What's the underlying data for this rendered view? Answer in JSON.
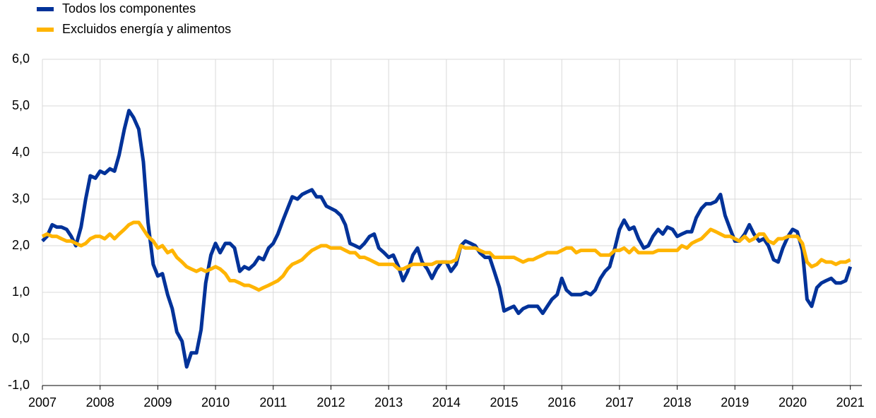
{
  "chart_data": {
    "type": "line",
    "x": [
      2007,
      2007.08,
      2007.17,
      2007.25,
      2007.33,
      2007.42,
      2007.5,
      2007.58,
      2007.67,
      2007.75,
      2007.83,
      2007.92,
      2008,
      2008.08,
      2008.17,
      2008.25,
      2008.33,
      2008.42,
      2008.5,
      2008.58,
      2008.67,
      2008.75,
      2008.83,
      2008.92,
      2009,
      2009.08,
      2009.17,
      2009.25,
      2009.33,
      2009.42,
      2009.5,
      2009.58,
      2009.67,
      2009.75,
      2009.83,
      2009.92,
      2010,
      2010.08,
      2010.17,
      2010.25,
      2010.33,
      2010.42,
      2010.5,
      2010.58,
      2010.67,
      2010.75,
      2010.83,
      2010.92,
      2011,
      2011.08,
      2011.17,
      2011.25,
      2011.33,
      2011.42,
      2011.5,
      2011.58,
      2011.67,
      2011.75,
      2011.83,
      2011.92,
      2012,
      2012.08,
      2012.17,
      2012.25,
      2012.33,
      2012.42,
      2012.5,
      2012.58,
      2012.67,
      2012.75,
      2012.83,
      2012.92,
      2013,
      2013.08,
      2013.17,
      2013.25,
      2013.33,
      2013.42,
      2013.5,
      2013.58,
      2013.67,
      2013.75,
      2013.83,
      2013.92,
      2014,
      2014.08,
      2014.17,
      2014.25,
      2014.33,
      2014.42,
      2014.5,
      2014.58,
      2014.67,
      2014.75,
      2014.83,
      2014.92,
      2015,
      2015.08,
      2015.17,
      2015.25,
      2015.33,
      2015.42,
      2015.5,
      2015.58,
      2015.67,
      2015.75,
      2015.83,
      2015.92,
      2016,
      2016.08,
      2016.17,
      2016.25,
      2016.33,
      2016.42,
      2016.5,
      2016.58,
      2016.67,
      2016.75,
      2016.83,
      2016.92,
      2017,
      2017.08,
      2017.17,
      2017.25,
      2017.33,
      2017.42,
      2017.5,
      2017.58,
      2017.67,
      2017.75,
      2017.83,
      2017.92,
      2018,
      2018.08,
      2018.17,
      2018.25,
      2018.33,
      2018.42,
      2018.5,
      2018.58,
      2018.67,
      2018.75,
      2018.83,
      2018.92,
      2019,
      2019.08,
      2019.17,
      2019.25,
      2019.33,
      2019.42,
      2019.5,
      2019.58,
      2019.67,
      2019.75,
      2019.83,
      2019.92,
      2020,
      2020.08,
      2020.17,
      2020.25,
      2020.33,
      2020.42,
      2020.5,
      2020.58,
      2020.67,
      2020.75,
      2020.83,
      2020.92,
      2021
    ],
    "series": [
      {
        "name": "Todos los componentes",
        "color": "#003299",
        "values": [
          2.1,
          2.2,
          2.45,
          2.4,
          2.4,
          2.35,
          2.2,
          2.0,
          2.4,
          3.0,
          3.5,
          3.45,
          3.6,
          3.55,
          3.65,
          3.6,
          3.95,
          4.5,
          4.9,
          4.75,
          4.5,
          3.8,
          2.5,
          1.6,
          1.35,
          1.4,
          0.95,
          0.65,
          0.15,
          -0.05,
          -0.6,
          -0.3,
          -0.3,
          0.2,
          1.2,
          1.8,
          2.05,
          1.85,
          2.05,
          2.05,
          1.95,
          1.45,
          1.55,
          1.5,
          1.6,
          1.75,
          1.7,
          1.95,
          2.05,
          2.25,
          2.55,
          2.8,
          3.05,
          3.0,
          3.1,
          3.15,
          3.2,
          3.05,
          3.05,
          2.85,
          2.8,
          2.75,
          2.65,
          2.45,
          2.05,
          2.0,
          1.95,
          2.05,
          2.2,
          2.25,
          1.95,
          1.85,
          1.75,
          1.8,
          1.55,
          1.25,
          1.45,
          1.8,
          1.95,
          1.65,
          1.5,
          1.3,
          1.5,
          1.65,
          1.65,
          1.45,
          1.6,
          2.0,
          2.1,
          2.05,
          2.0,
          1.85,
          1.75,
          1.75,
          1.45,
          1.1,
          0.6,
          0.65,
          0.7,
          0.55,
          0.65,
          0.7,
          0.7,
          0.7,
          0.55,
          0.7,
          0.85,
          0.95,
          1.3,
          1.05,
          0.95,
          0.95,
          0.95,
          1.0,
          0.95,
          1.05,
          1.3,
          1.45,
          1.55,
          1.95,
          2.35,
          2.55,
          2.35,
          2.4,
          2.15,
          1.95,
          2.0,
          2.2,
          2.35,
          2.25,
          2.4,
          2.35,
          2.2,
          2.25,
          2.3,
          2.3,
          2.6,
          2.8,
          2.9,
          2.9,
          2.95,
          3.1,
          2.65,
          2.35,
          2.1,
          2.1,
          2.25,
          2.45,
          2.25,
          2.1,
          2.15,
          2.0,
          1.7,
          1.65,
          1.95,
          2.2,
          2.35,
          2.3,
          1.9,
          0.85,
          0.7,
          1.1,
          1.2,
          1.25,
          1.3,
          1.2,
          1.2,
          1.25,
          1.55
        ]
      },
      {
        "name": "Excluidos energía y alimentos",
        "color": "#ffb400",
        "values": [
          2.2,
          2.25,
          2.2,
          2.2,
          2.15,
          2.1,
          2.1,
          2.05,
          2.0,
          2.05,
          2.15,
          2.2,
          2.2,
          2.15,
          2.25,
          2.15,
          2.25,
          2.35,
          2.45,
          2.5,
          2.5,
          2.35,
          2.2,
          2.1,
          1.95,
          2.0,
          1.85,
          1.9,
          1.75,
          1.65,
          1.55,
          1.5,
          1.45,
          1.5,
          1.45,
          1.5,
          1.55,
          1.5,
          1.4,
          1.25,
          1.25,
          1.2,
          1.15,
          1.15,
          1.1,
          1.05,
          1.1,
          1.15,
          1.2,
          1.25,
          1.35,
          1.5,
          1.6,
          1.65,
          1.7,
          1.8,
          1.9,
          1.95,
          2.0,
          2.0,
          1.95,
          1.95,
          1.95,
          1.9,
          1.85,
          1.85,
          1.75,
          1.75,
          1.7,
          1.65,
          1.6,
          1.6,
          1.6,
          1.6,
          1.5,
          1.5,
          1.55,
          1.6,
          1.6,
          1.6,
          1.6,
          1.6,
          1.65,
          1.65,
          1.65,
          1.65,
          1.7,
          2.0,
          1.95,
          1.95,
          1.95,
          1.9,
          1.85,
          1.85,
          1.75,
          1.75,
          1.75,
          1.75,
          1.75,
          1.7,
          1.65,
          1.7,
          1.7,
          1.75,
          1.8,
          1.85,
          1.85,
          1.85,
          1.9,
          1.95,
          1.95,
          1.85,
          1.9,
          1.9,
          1.9,
          1.9,
          1.8,
          1.8,
          1.8,
          1.9,
          1.9,
          1.95,
          1.85,
          1.95,
          1.85,
          1.85,
          1.85,
          1.85,
          1.9,
          1.9,
          1.9,
          1.9,
          1.9,
          2.0,
          1.95,
          2.05,
          2.1,
          2.15,
          2.25,
          2.35,
          2.3,
          2.25,
          2.2,
          2.2,
          2.15,
          2.1,
          2.2,
          2.1,
          2.15,
          2.25,
          2.25,
          2.1,
          2.05,
          2.15,
          2.15,
          2.2,
          2.2,
          2.2,
          2.05,
          1.65,
          1.55,
          1.6,
          1.7,
          1.65,
          1.65,
          1.6,
          1.65,
          1.65,
          1.7
        ]
      }
    ],
    "xlim": [
      2007,
      2021.2
    ],
    "xticks": [
      2007,
      2008,
      2009,
      2010,
      2011,
      2012,
      2013,
      2014,
      2015,
      2016,
      2017,
      2018,
      2019,
      2020,
      2021
    ],
    "ylim": [
      -1,
      6
    ],
    "yticks": [
      {
        "value": -1,
        "label": "-1,0"
      },
      {
        "value": 0,
        "label": "0,0"
      },
      {
        "value": 1,
        "label": "1,0"
      },
      {
        "value": 2,
        "label": "2,0"
      },
      {
        "value": 3,
        "label": "3,0"
      },
      {
        "value": 4,
        "label": "4,0"
      },
      {
        "value": 5,
        "label": "5,0"
      },
      {
        "value": 6,
        "label": "6,0"
      }
    ],
    "grid": true,
    "legend": "top-left"
  }
}
